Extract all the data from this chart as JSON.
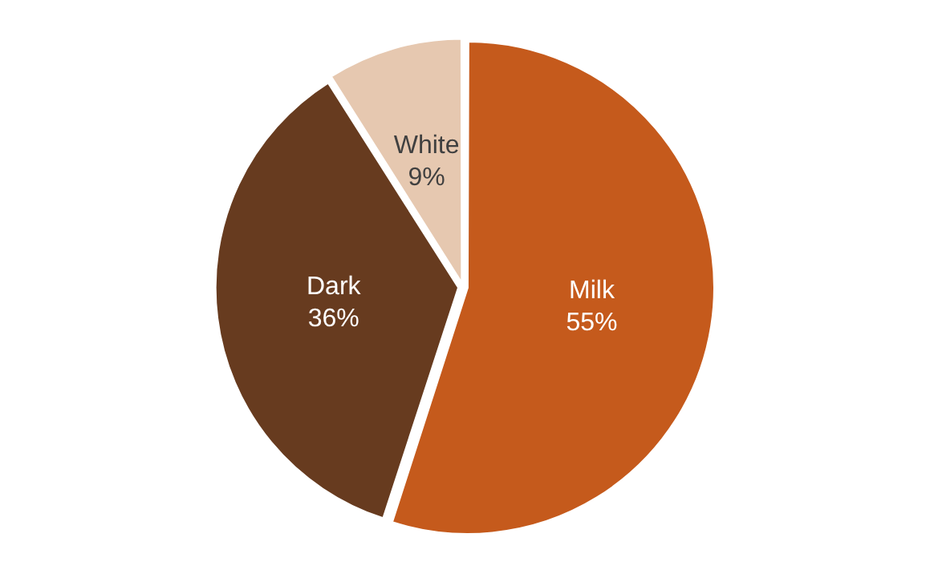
{
  "chart_data": {
    "type": "pie",
    "categories": [
      "Milk",
      "Dark",
      "White"
    ],
    "values": [
      55,
      36,
      9
    ],
    "colors": [
      "#c55a1c",
      "#673b1f",
      "#e6c8b0"
    ],
    "value_labels": [
      "55%",
      "36%",
      "9%"
    ],
    "legend": false
  }
}
